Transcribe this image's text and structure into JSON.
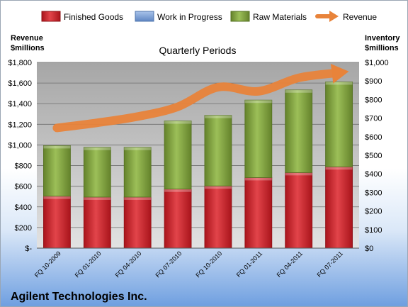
{
  "chart_data": {
    "type": "bar",
    "subtype": "stacked-bar-with-line",
    "title": "Quarterly Periods",
    "company": "Agilent Technologies Inc.",
    "left_axis_label": [
      "Revenue",
      "$millions"
    ],
    "right_axis_label": [
      "Inventory",
      "$millions"
    ],
    "categories": [
      "FQ 10-2009",
      "FQ 01-2010",
      "FQ 04-2010",
      "FQ 07-2010",
      "FQ 10-2010",
      "FQ 01-2011",
      "FQ 04-2011",
      "FQ 07-2011"
    ],
    "left_ticks": [
      "$-",
      "$200",
      "$400",
      "$600",
      "$800",
      "$1,000",
      "$1,200",
      "$1,400",
      "$1,600",
      "$1,800"
    ],
    "right_ticks": [
      "$0",
      "$100",
      "$200",
      "$300",
      "$400",
      "$500",
      "$600",
      "$700",
      "$800",
      "$900",
      "$1,000"
    ],
    "ylim_left": [
      0,
      1800
    ],
    "ylim_right": [
      0,
      1000
    ],
    "grid": true,
    "legend_position": "top",
    "series": [
      {
        "name": "Finished Goods",
        "axis": "right",
        "color": "#cc2229",
        "values": [
          280,
          275,
          275,
          318,
          335,
          380,
          407,
          438
        ]
      },
      {
        "name": "Work in Progress",
        "axis": "right",
        "color": "#7fa1d3",
        "values": [
          0,
          0,
          0,
          0,
          0,
          0,
          0,
          0
        ]
      },
      {
        "name": "Raw Materials",
        "axis": "right",
        "color": "#7a9a3a",
        "values": [
          272,
          268,
          268,
          367,
          380,
          417,
          445,
          457
        ]
      },
      {
        "name": "Revenue",
        "axis": "left",
        "color": "#e8833a",
        "values": [
          1165,
          1215,
          1275,
          1370,
          1560,
          1520,
          1650,
          1700
        ]
      }
    ]
  }
}
